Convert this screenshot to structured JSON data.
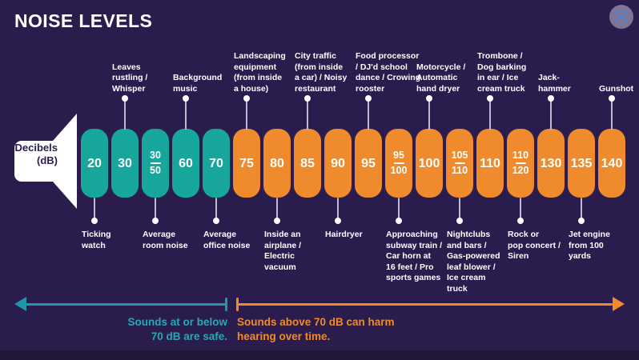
{
  "title": "NOISE LEVELS",
  "speaker": {
    "label": "Decibels\n(dB)"
  },
  "colors": {
    "background": "#2b1c4e",
    "safe_pill": "#17a69b",
    "harm_pill": "#ef8b2c",
    "safe_arrow": "#2196ab",
    "safe_text": "#2aa7b4",
    "harm_arrow": "#ef8b2c",
    "label_text": "#ffffff",
    "badge_icon_blue": "#4a86d4"
  },
  "chart_data": {
    "type": "bar",
    "title": "NOISE LEVELS",
    "unit": "dB",
    "safe_threshold_db": 70,
    "items": [
      {
        "value": "20",
        "zone": "safe",
        "label": "Ticking\nwatch",
        "label_position": "below"
      },
      {
        "value": "30",
        "zone": "safe",
        "label": "Leaves\nrustling /\nWhisper",
        "label_position": "above"
      },
      {
        "value": "30/50",
        "zone": "safe",
        "label": "Average\nroom noise",
        "label_position": "below"
      },
      {
        "value": "60",
        "zone": "safe",
        "label": "Background\nmusic",
        "label_position": "above"
      },
      {
        "value": "70",
        "zone": "safe",
        "label": "Average\noffice noise",
        "label_position": "below"
      },
      {
        "value": "75",
        "zone": "harm",
        "label": "Landscaping\nequipment\n(from inside\na house)",
        "label_position": "above"
      },
      {
        "value": "80",
        "zone": "harm",
        "label": "Inside an\nairplane /\nElectric\nvacuum",
        "label_position": "below"
      },
      {
        "value": "85",
        "zone": "harm",
        "label": "City traffic\n(from inside\na car) / Noisy\nrestaurant",
        "label_position": "above"
      },
      {
        "value": "90",
        "zone": "harm",
        "label": "Hairdryer",
        "label_position": "below"
      },
      {
        "value": "95",
        "zone": "harm",
        "label": "Food processor\n/ DJ'd school\ndance / Crowing\nrooster",
        "label_position": "above"
      },
      {
        "value": "95/100",
        "zone": "harm",
        "label": "Approaching\nsubway train /\nCar horn at\n16 feet / Pro\nsports games",
        "label_position": "below"
      },
      {
        "value": "100",
        "zone": "harm",
        "label": "Motorcycle /\nAutomatic\nhand dryer",
        "label_position": "above"
      },
      {
        "value": "105/110",
        "zone": "harm",
        "label": "Nightclubs\nand bars /\nGas-powered\nleaf blower /\nIce cream\ntruck",
        "label_position": "below"
      },
      {
        "value": "110",
        "zone": "harm",
        "label": "Trombone /\nDog barking\nin ear / Ice\ncream truck",
        "label_position": "above"
      },
      {
        "value": "110/120",
        "zone": "harm",
        "label": "Rock or\npop concert /\nSiren",
        "label_position": "below"
      },
      {
        "value": "130",
        "zone": "harm",
        "label": "Jack-\nhammer",
        "label_position": "above"
      },
      {
        "value": "135",
        "zone": "harm",
        "label": "Jet engine\nfrom 100\nyards",
        "label_position": "below"
      },
      {
        "value": "140",
        "zone": "harm",
        "label": "Gunshot",
        "label_position": "above"
      }
    ]
  },
  "legend": {
    "safe_text": "Sounds at or below\n70 dB are safe.",
    "harm_text": "Sounds above 70 dB can harm\nhearing over time."
  }
}
